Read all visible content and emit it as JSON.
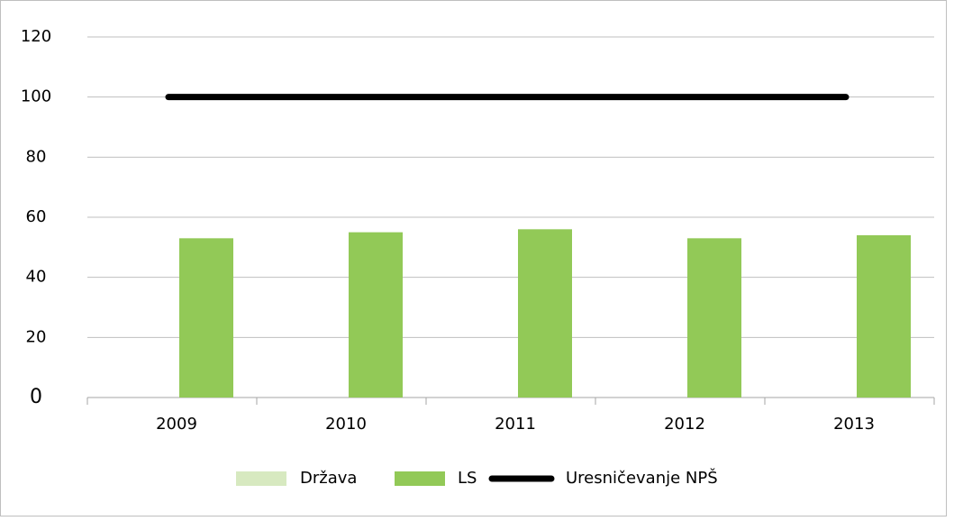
{
  "chart_data": {
    "type": "bar",
    "categories": [
      "2009",
      "2010",
      "2011",
      "2012",
      "2013"
    ],
    "series": [
      {
        "name": "Država",
        "color": "#d7e9c0",
        "values": [
          0,
          0,
          0,
          0,
          0
        ]
      },
      {
        "name": "LS",
        "color": "#92c957",
        "values": [
          53,
          55,
          56,
          53,
          54
        ]
      },
      {
        "name": "Uresničevanje NPŠ",
        "type": "line",
        "color": "#000000",
        "values": [
          100,
          100,
          100,
          100,
          100
        ]
      }
    ],
    "ylim": [
      0,
      120
    ],
    "yticks": [
      0,
      20,
      40,
      60,
      80,
      100,
      120
    ],
    "grid": true,
    "legend": "bottom"
  }
}
